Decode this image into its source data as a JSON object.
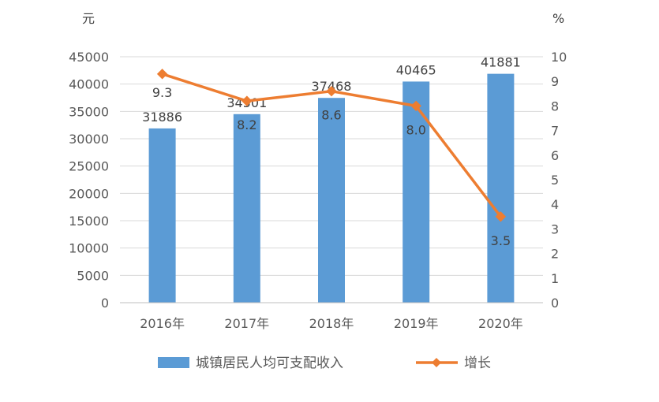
{
  "chart_data": {
    "type": "bar",
    "categories": [
      "2016年",
      "2017年",
      "2018年",
      "2019年",
      "2020年"
    ],
    "series": [
      {
        "name": "城镇居民人均可支配收入",
        "type": "bar",
        "axis": "left",
        "color": "#5B9BD5",
        "values": [
          31886,
          34501,
          37468,
          40465,
          41881
        ]
      },
      {
        "name": "增长",
        "type": "line",
        "axis": "right",
        "color": "#ED7D31",
        "values": [
          9.3,
          8.2,
          8.6,
          8.0,
          3.5
        ],
        "labels": [
          "9.3",
          "8.2",
          "8.6",
          "8.0",
          "3.5"
        ]
      }
    ],
    "ylabel_left": "元",
    "ylabel_right": "%",
    "ylim_left": [
      0,
      45000
    ],
    "ylim_right": [
      0,
      10
    ],
    "yticks_left": [
      "0",
      "5000",
      "10000",
      "15000",
      "20000",
      "25000",
      "30000",
      "35000",
      "40000",
      "45000"
    ],
    "yticks_right": [
      "0",
      "1",
      "2",
      "3",
      "4",
      "5",
      "6",
      "7",
      "8",
      "9",
      "10"
    ],
    "grid": true,
    "legend_position": "bottom"
  }
}
